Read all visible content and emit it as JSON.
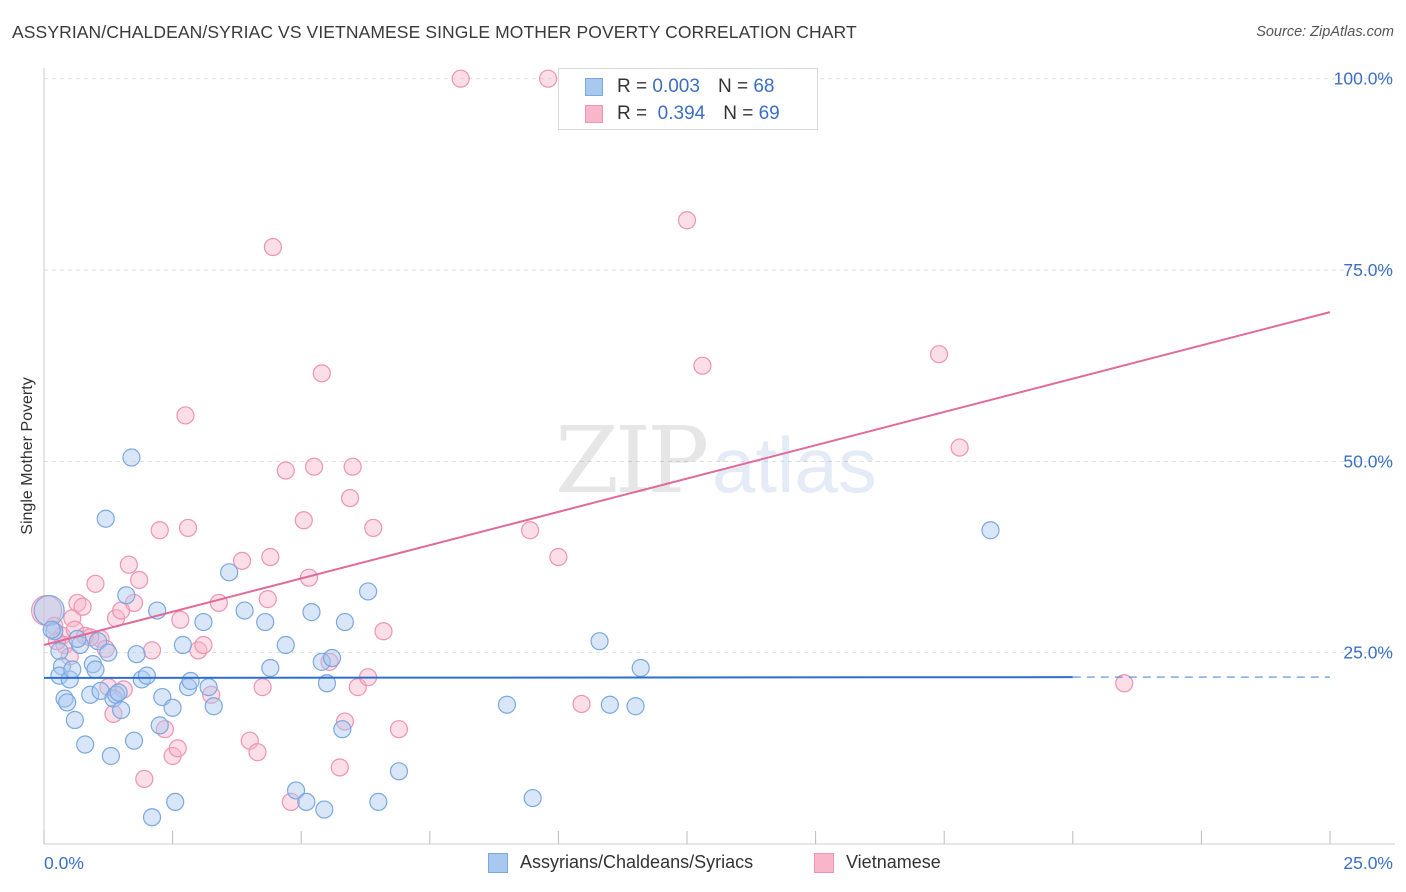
{
  "title": "ASSYRIAN/CHALDEAN/SYRIAC VS VIETNAMESE SINGLE MOTHER POVERTY CORRELATION CHART",
  "source": "Source: ZipAtlas.com",
  "watermark": {
    "zip": "ZIP",
    "atlas": "atlas"
  },
  "legend": {
    "rows": [
      {
        "r_label": "R =",
        "r_value": "0.003",
        "n_label": "N =",
        "n_value": "68"
      },
      {
        "r_label": "R =",
        "r_value": "0.394",
        "n_label": "N =",
        "n_value": "69"
      }
    ]
  },
  "colors": {
    "blue_fill": "#a9c8f0",
    "blue_stroke": "#7aa8e0",
    "blue_line": "#2e6fcc",
    "pink_fill": "#f7b6c9",
    "pink_stroke": "#ef93b0",
    "pink_line": "#e06a99",
    "tick_label": "#3b6fc4",
    "grid": "#dddddd"
  },
  "chart_data": {
    "type": "scatter",
    "title": "ASSYRIAN/CHALDEAN/SYRIAC VS VIETNAMESE SINGLE MOTHER POVERTY CORRELATION CHART",
    "xlabel": "",
    "ylabel": "Single Mother Poverty",
    "xlim": [
      0,
      25
    ],
    "ylim": [
      0,
      100
    ],
    "x_tick_labels": [
      "0.0%",
      "25.0%"
    ],
    "y_tick_labels": [
      "25.0%",
      "50.0%",
      "75.0%",
      "100.0%"
    ],
    "y_ticks": [
      25,
      50,
      75,
      100
    ],
    "series": [
      {
        "name": "Assyrians/Chaldeans/Syriacs",
        "color": "#a9c8f0",
        "R": 0.003,
        "N": 68,
        "trend": {
          "x": [
            0,
            20
          ],
          "y": [
            21.7,
            21.8
          ],
          "dashed_extension_to_x": 25
        },
        "points": [
          [
            0.1,
            30.5
          ],
          [
            0.2,
            27.8
          ],
          [
            0.3,
            25.2
          ],
          [
            0.35,
            23.2
          ],
          [
            0.3,
            22.0
          ],
          [
            0.5,
            21.5
          ],
          [
            0.4,
            19.0
          ],
          [
            0.45,
            18.5
          ],
          [
            0.55,
            22.8
          ],
          [
            0.6,
            16.2
          ],
          [
            0.7,
            26.0
          ],
          [
            0.8,
            13.0
          ],
          [
            0.9,
            19.5
          ],
          [
            0.95,
            23.5
          ],
          [
            1.0,
            22.8
          ],
          [
            1.05,
            26.5
          ],
          [
            1.1,
            20.0
          ],
          [
            1.2,
            42.5
          ],
          [
            1.25,
            25.0
          ],
          [
            1.3,
            11.5
          ],
          [
            1.35,
            19.0
          ],
          [
            1.4,
            19.5
          ],
          [
            1.5,
            17.5
          ],
          [
            1.6,
            32.5
          ],
          [
            1.7,
            50.5
          ],
          [
            1.75,
            13.5
          ],
          [
            1.8,
            24.8
          ],
          [
            1.9,
            21.5
          ],
          [
            2.1,
            3.5
          ],
          [
            2.2,
            30.5
          ],
          [
            2.25,
            15.5
          ],
          [
            2.3,
            19.2
          ],
          [
            2.5,
            17.8
          ],
          [
            2.55,
            5.5
          ],
          [
            2.7,
            26.0
          ],
          [
            2.8,
            20.5
          ],
          [
            2.85,
            21.3
          ],
          [
            3.1,
            29.0
          ],
          [
            3.2,
            20.5
          ],
          [
            3.3,
            18.0
          ],
          [
            3.6,
            35.5
          ],
          [
            3.9,
            30.5
          ],
          [
            4.3,
            29.0
          ],
          [
            4.4,
            23.0
          ],
          [
            4.7,
            26.0
          ],
          [
            4.9,
            7.0
          ],
          [
            5.1,
            5.5
          ],
          [
            5.2,
            30.3
          ],
          [
            5.4,
            23.8
          ],
          [
            5.45,
            4.5
          ],
          [
            5.5,
            21.0
          ],
          [
            5.6,
            24.3
          ],
          [
            5.8,
            15.0
          ],
          [
            5.85,
            29.0
          ],
          [
            6.3,
            33.0
          ],
          [
            6.5,
            5.5
          ],
          [
            6.9,
            9.5
          ],
          [
            9.0,
            18.2
          ],
          [
            9.5,
            6.0
          ],
          [
            10.8,
            26.5
          ],
          [
            11.0,
            18.2
          ],
          [
            11.5,
            18.0
          ],
          [
            11.6,
            23.0
          ],
          [
            18.4,
            41.0
          ],
          [
            0.15,
            28.0
          ],
          [
            0.65,
            26.8
          ],
          [
            1.45,
            19.8
          ],
          [
            2.0,
            22.0
          ]
        ]
      },
      {
        "name": "Vietnamese",
        "color": "#f7b6c9",
        "R": 0.394,
        "N": 69,
        "trend": {
          "x": [
            0,
            25
          ],
          "y": [
            26.0,
            69.5
          ]
        },
        "points": [
          [
            0.05,
            30.5
          ],
          [
            0.2,
            28.5
          ],
          [
            0.35,
            27.2
          ],
          [
            0.4,
            26.0
          ],
          [
            0.5,
            24.5
          ],
          [
            0.55,
            29.5
          ],
          [
            0.6,
            28.0
          ],
          [
            0.65,
            31.5
          ],
          [
            0.75,
            31.0
          ],
          [
            0.8,
            27.2
          ],
          [
            1.0,
            34.0
          ],
          [
            1.1,
            26.8
          ],
          [
            1.2,
            25.5
          ],
          [
            1.25,
            20.5
          ],
          [
            1.35,
            17.0
          ],
          [
            1.4,
            29.5
          ],
          [
            1.5,
            30.5
          ],
          [
            1.65,
            36.5
          ],
          [
            1.75,
            31.5
          ],
          [
            1.85,
            34.5
          ],
          [
            1.95,
            8.5
          ],
          [
            2.1,
            25.3
          ],
          [
            2.25,
            41.0
          ],
          [
            2.35,
            15.0
          ],
          [
            2.5,
            11.5
          ],
          [
            2.6,
            12.5
          ],
          [
            2.65,
            29.3
          ],
          [
            2.75,
            56.0
          ],
          [
            2.8,
            41.3
          ],
          [
            3.0,
            25.3
          ],
          [
            3.1,
            26.0
          ],
          [
            3.25,
            19.5
          ],
          [
            3.4,
            31.5
          ],
          [
            3.85,
            37.0
          ],
          [
            4.0,
            13.5
          ],
          [
            4.15,
            12.0
          ],
          [
            4.25,
            20.5
          ],
          [
            4.35,
            32.0
          ],
          [
            4.4,
            37.5
          ],
          [
            4.45,
            78.0
          ],
          [
            4.7,
            48.8
          ],
          [
            4.8,
            5.5
          ],
          [
            5.05,
            42.3
          ],
          [
            5.15,
            34.8
          ],
          [
            5.25,
            49.3
          ],
          [
            5.4,
            61.5
          ],
          [
            5.55,
            23.8
          ],
          [
            5.75,
            10.0
          ],
          [
            5.85,
            16.0
          ],
          [
            5.95,
            45.2
          ],
          [
            6.0,
            49.3
          ],
          [
            6.1,
            20.5
          ],
          [
            6.3,
            21.8
          ],
          [
            6.4,
            41.3
          ],
          [
            6.6,
            27.8
          ],
          [
            6.9,
            15.0
          ],
          [
            8.1,
            100.0
          ],
          [
            9.45,
            41.0
          ],
          [
            9.8,
            100.0
          ],
          [
            10.0,
            37.5
          ],
          [
            10.45,
            18.3
          ],
          [
            12.5,
            81.5
          ],
          [
            12.8,
            62.5
          ],
          [
            17.4,
            64.0
          ],
          [
            17.8,
            51.8
          ],
          [
            21.0,
            21.0
          ],
          [
            0.25,
            26.5
          ],
          [
            0.9,
            27.0
          ],
          [
            1.55,
            20.2
          ]
        ]
      }
    ]
  },
  "bottom_legend": {
    "series1": "Assyrians/Chaldeans/Syriacs",
    "series2": "Vietnamese"
  }
}
